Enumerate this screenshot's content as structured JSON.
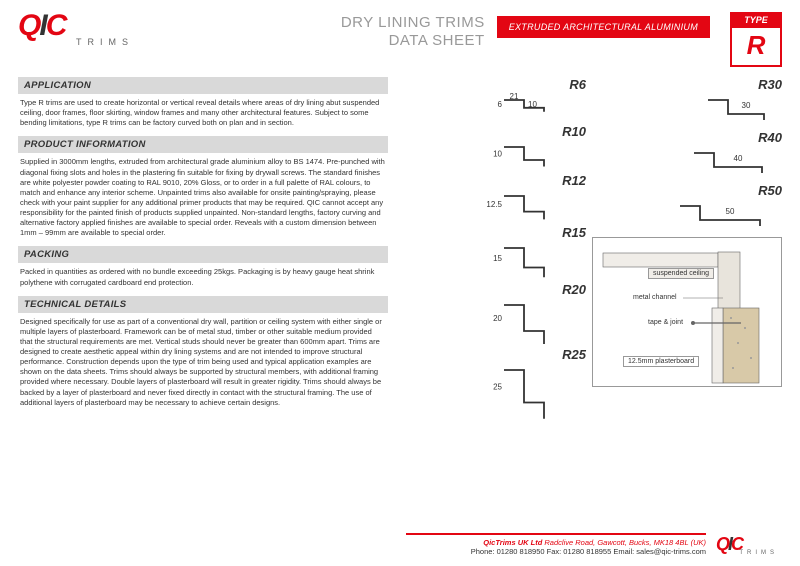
{
  "brand": {
    "name": "QIC",
    "sub": "TRIMS"
  },
  "title": {
    "line1": "DRY LINING TRIMS",
    "line2": "DATA SHEET"
  },
  "redbar": "EXTRUDED ARCHITECTURAL ALUMINIUM",
  "type": {
    "hdr": "TYPE",
    "val": "R"
  },
  "sections": [
    {
      "hdr": "APPLICATION",
      "txt": "Type R trims are used to create horizontal or vertical reveal details where areas of dry lining abut suspended ceiling, door frames, floor skirting, window frames and many other architectural features. Subject to some bending limitations, type R trims can be factory curved both on plan and in section."
    },
    {
      "hdr": "PRODUCT INFORMATION",
      "txt": "Supplied in 3000mm lengths, extruded from architectural grade aluminium alloy to BS 1474. Pre-punched with diagonal fixing slots and holes in the plastering fin suitable for fixing by drywall screws. The standard finishes are white polyester powder coating to RAL 9010, 20% Gloss, or to order in a full palette of RAL colours, to match and enhance any interior scheme. Unpainted trims also available for onsite painting/spraying, please check with your paint supplier for any additional primer products that may be required. QIC cannot accept any responsibility for the painted finish of products supplied unpainted. Non-standard lengths, factory curving and alternative factory applied finishes are available to special order. Reveals with a custom dimension between 1mm – 99mm are available to special order."
    },
    {
      "hdr": "PACKING",
      "txt": "Packed in quantities as ordered with no bundle exceeding 25kgs. Packaging is by heavy gauge heat shrink polythene with corrugated cardboard end protection."
    },
    {
      "hdr": "TECHNICAL DETAILS",
      "txt": "Designed specifically for use as part of a conventional dry wall, partition or ceiling system with either single or multiple layers of plasterboard. Framework can be of metal stud, timber or other suitable medium provided that the structural requirements are met. Vertical studs should never be greater than 600mm apart. Trims are designed to create aesthetic appeal within dry lining systems and are not intended to improve structural performance. Construction depends upon the type of trim being used and typical application examples are shown on the data sheets. Trims should always be supported by structural members, with additional framing provided where necessary. Double layers of plasterboard will result in greater rigidity. Trims should always be backed by a layer of plasterboard and never fixed directly in contact with the structural framing. The use of additional layers of plasterboard may be necessary to achieve certain designs."
    }
  ],
  "profiles_left": [
    {
      "name": "R6",
      "dims": [
        "21",
        "6",
        "10"
      ],
      "w": 21,
      "h": 6
    },
    {
      "name": "R10",
      "dims": [
        "10"
      ],
      "w": 25,
      "h": 10
    },
    {
      "name": "R12",
      "dims": [
        "12.5"
      ],
      "w": 25,
      "h": 12
    },
    {
      "name": "R15",
      "dims": [
        "15"
      ],
      "w": 25,
      "h": 15
    },
    {
      "name": "R20",
      "dims": [
        "20"
      ],
      "w": 25,
      "h": 20
    },
    {
      "name": "R25",
      "dims": [
        "25"
      ],
      "w": 25,
      "h": 25
    }
  ],
  "profiles_right": [
    {
      "name": "R30",
      "dims": [
        "30"
      ],
      "w": 30,
      "h": 15
    },
    {
      "name": "R40",
      "dims": [
        "40"
      ],
      "w": 40,
      "h": 15
    },
    {
      "name": "R50",
      "dims": [
        "50"
      ],
      "w": 50,
      "h": 15
    }
  ],
  "diagram": {
    "labels": [
      "suspended ceiling",
      "metal channel",
      "tape & joint",
      "12.5mm plasterboard"
    ],
    "colors": {
      "stroke": "#666",
      "fill_light": "#f0ede8",
      "fill_dots": "#d8c9a8"
    }
  },
  "footer": {
    "company": "QicTrims UK Ltd",
    "addr": "Radclive Road, Gawcott, Bucks, MK18 4BL (UK)",
    "contact": "Phone: 01280 818950  Fax: 01280 818955  Email: sales@qic-trims.com"
  },
  "colors": {
    "red": "#e30613",
    "grey": "#d9d9d9",
    "text": "#333333"
  }
}
